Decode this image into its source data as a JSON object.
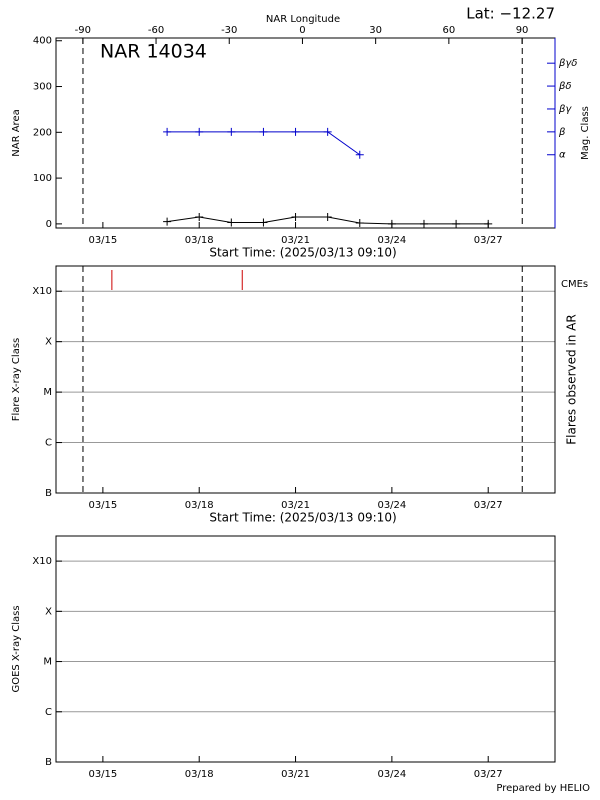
{
  "footer": "Prepared by HELIO",
  "chart_data": [
    {
      "type": "line",
      "title": "NAR 14034",
      "annotation": "Lat: −12.27",
      "x_label": "Start Time: (2025/03/13 09:10)",
      "x2_label": "NAR Longitude",
      "y_label": "NAR Area",
      "y2_label": "Mag. Class",
      "xlim": [
        13.54,
        29.08
      ],
      "xticks": [
        {
          "value": 15,
          "label": "03/15"
        },
        {
          "value": 18,
          "label": "03/18"
        },
        {
          "value": 21,
          "label": "03/21"
        },
        {
          "value": 24,
          "label": "03/24"
        },
        {
          "value": 27,
          "label": "03/27"
        }
      ],
      "x2lim": [
        -101,
        103.5
      ],
      "x2ticks": [
        -90,
        -60,
        -30,
        0,
        30,
        60,
        90
      ],
      "limbs": [
        14.38,
        28.06
      ],
      "ylim": [
        -9,
        406
      ],
      "yticks": [
        0,
        100,
        200,
        300,
        400
      ],
      "y2lim": [
        -0.2,
        8.1
      ],
      "y2ticks": [
        {
          "value": 3,
          "label": "α"
        },
        {
          "value": 4,
          "label": "β"
        },
        {
          "value": 5,
          "label": "βγ"
        },
        {
          "value": 6,
          "label": "βδ"
        },
        {
          "value": 7,
          "label": "βγδ"
        }
      ],
      "y2color": "#0000cc",
      "series": [
        {
          "color": "#000000",
          "x": [
            17,
            18,
            19,
            20,
            21,
            22,
            23,
            24,
            25,
            26,
            27
          ],
          "values": [
            5,
            15,
            3,
            3,
            15,
            15,
            2,
            0,
            0,
            0,
            0
          ]
        },
        {
          "color": "#0000cc",
          "axis": "y2",
          "x": [
            17,
            18,
            19,
            20,
            21,
            22,
            23
          ],
          "values": [
            4,
            4,
            4,
            4,
            4,
            4,
            3
          ]
        }
      ]
    },
    {
      "type": "flare",
      "x_label": "Start Time: (2025/03/13 09:10)",
      "y_label": "Flare X-ray Class",
      "y2_label": "Flares observed in AR",
      "xlim": [
        13.54,
        29.08
      ],
      "xticks": [
        {
          "value": 15,
          "label": "03/15"
        },
        {
          "value": 18,
          "label": "03/18"
        },
        {
          "value": 21,
          "label": "03/21"
        },
        {
          "value": 24,
          "label": "03/24"
        },
        {
          "value": 27,
          "label": "03/27"
        }
      ],
      "limbs": [
        14.38,
        28.06
      ],
      "ylim": [
        0,
        4.5
      ],
      "yticks": [
        {
          "value": 0,
          "label": "B"
        },
        {
          "value": 1,
          "label": "C"
        },
        {
          "value": 2,
          "label": "M"
        },
        {
          "value": 3,
          "label": "X"
        },
        {
          "value": 4,
          "label": "X10"
        }
      ],
      "grid": true,
      "cmes": {
        "name": "CMEs",
        "color": "#cc0000",
        "x": [
          15.28,
          19.34
        ]
      }
    },
    {
      "type": "flare",
      "y_label": "GOES X-ray Class",
      "xlim": [
        13.54,
        29.08
      ],
      "xticks": [
        {
          "value": 15,
          "label": "03/15"
        },
        {
          "value": 18,
          "label": "03/18"
        },
        {
          "value": 21,
          "label": "03/21"
        },
        {
          "value": 24,
          "label": "03/24"
        },
        {
          "value": 27,
          "label": "03/27"
        }
      ],
      "ylim": [
        0,
        4.5
      ],
      "yticks": [
        {
          "value": 0,
          "label": "B"
        },
        {
          "value": 1,
          "label": "C"
        },
        {
          "value": 2,
          "label": "M"
        },
        {
          "value": 3,
          "label": "X"
        },
        {
          "value": 4,
          "label": "X10"
        }
      ],
      "grid": true
    }
  ]
}
